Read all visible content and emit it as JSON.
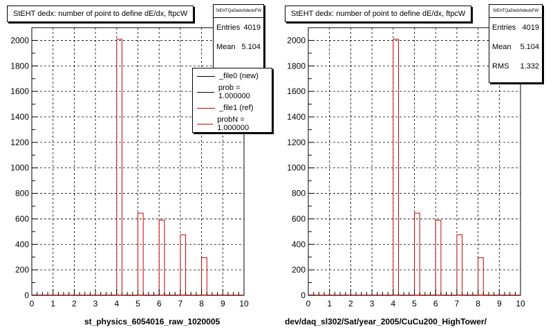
{
  "panels": [
    {
      "title": "StEHT dedx: number of point to define dE/dx, ftpcW",
      "stats": {
        "name": "StEHTQaDedxNdedxFW",
        "rows": [
          [
            "Entries",
            "4019"
          ],
          [
            "Mean",
            "5.104"
          ]
        ]
      },
      "legend": [
        {
          "label": "_file0 (new)",
          "color": "#000000"
        },
        {
          "label": "prob = 1.000000",
          "color": "#000000"
        },
        {
          "label": "_file1 (ref)",
          "color": "#cc0000"
        },
        {
          "label": "probN = 1.000000",
          "color": "#cc0000"
        }
      ],
      "xcaption": "st_physics_6054016_raw_1020005"
    },
    {
      "title": "StEHT dedx: number of point to define dE/dx, ftpcW",
      "stats": {
        "name": "StEHTQaDedxNdedxFW",
        "rows": [
          [
            "Entries",
            "4019"
          ],
          [
            "Mean",
            "5.104"
          ],
          [
            "RMS",
            "1.332"
          ]
        ]
      },
      "legend": [],
      "xcaption": "dev/daq_sl302/Sat/year_2005/CuCu200_HighTower/"
    }
  ],
  "chart_data": [
    {
      "type": "bar",
      "title": "StEHT dedx: number of point to define dE/dx, ftpcW",
      "xlabel": "st_physics_6054016_raw_1020005",
      "xlim": [
        0,
        10
      ],
      "ylim": [
        0,
        2100
      ],
      "xticks": [
        0,
        1,
        2,
        3,
        4,
        5,
        6,
        7,
        8,
        9,
        10
      ],
      "yticks": [
        0,
        200,
        400,
        600,
        800,
        1000,
        1200,
        1400,
        1600,
        1800,
        2000
      ],
      "grid": true,
      "bin_width": 0.25,
      "bins": [
        {
          "x": 4.0,
          "value": 2010
        },
        {
          "x": 5.0,
          "value": 645
        },
        {
          "x": 6.0,
          "value": 590
        },
        {
          "x": 7.0,
          "value": 475
        },
        {
          "x": 8.0,
          "value": 295
        }
      ],
      "series_color": "#cc0000"
    },
    {
      "type": "bar",
      "title": "StEHT dedx: number of point to define dE/dx, ftpcW",
      "xlabel": "dev/daq_sl302/Sat/year_2005/CuCu200_HighTower/",
      "xlim": [
        0,
        10
      ],
      "ylim": [
        0,
        2100
      ],
      "xticks": [
        0,
        1,
        2,
        3,
        4,
        5,
        6,
        7,
        8,
        9,
        10
      ],
      "yticks": [
        0,
        200,
        400,
        600,
        800,
        1000,
        1200,
        1400,
        1600,
        1800,
        2000
      ],
      "grid": true,
      "bin_width": 0.25,
      "bins": [
        {
          "x": 4.0,
          "value": 2010
        },
        {
          "x": 5.0,
          "value": 645
        },
        {
          "x": 6.0,
          "value": 590
        },
        {
          "x": 7.0,
          "value": 475
        },
        {
          "x": 8.0,
          "value": 295
        }
      ],
      "series_color": "#cc0000"
    }
  ]
}
